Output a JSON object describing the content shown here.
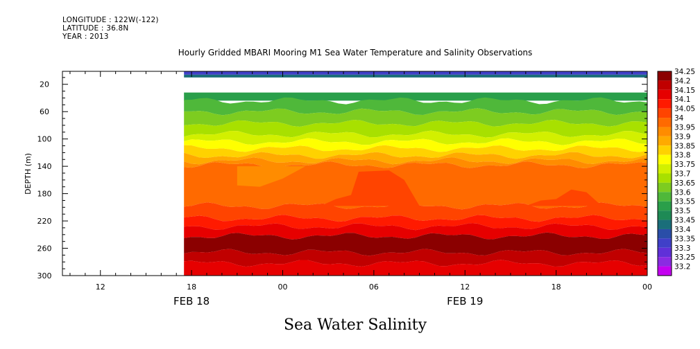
{
  "header": {
    "longitude_line": "LONGITUDE : 122W(-122)",
    "latitude_line": "LATITUDE : 36.8N",
    "year_line": "YEAR : 2013"
  },
  "chart_data": {
    "type": "heatmap",
    "title": "Hourly Gridded MBARI Mooring M1 Sea Water Temperature and Salinity Observations",
    "variable_title": "Sea Water Salinity",
    "ylabel": "DEPTH (m)",
    "xlabel": "",
    "x_axis": {
      "unit": "hours since 2013-02-18 00:00",
      "range": [
        9.5,
        48.0
      ],
      "tick_labels": [
        {
          "x": 12,
          "label": "12"
        },
        {
          "x": 18,
          "label": "18"
        },
        {
          "x": 24,
          "label": "00"
        },
        {
          "x": 30,
          "label": "06"
        },
        {
          "x": 36,
          "label": "12"
        },
        {
          "x": 42,
          "label": "18"
        },
        {
          "x": 48,
          "label": "00"
        }
      ],
      "date_labels": [
        {
          "x": 18,
          "label": "FEB 18"
        },
        {
          "x": 36,
          "label": "FEB 19"
        }
      ]
    },
    "y_axis": {
      "range": [
        300,
        1
      ],
      "reversed": true,
      "ticks": [
        20,
        60,
        100,
        140,
        180,
        220,
        260,
        300
      ]
    },
    "data_start_hour": 17.5,
    "colorbar": {
      "levels": [
        "34.25",
        "34.2",
        "34.15",
        "34.1",
        "34.05",
        "34",
        "33.95",
        "33.9",
        "33.85",
        "33.8",
        "33.75",
        "33.7",
        "33.65",
        "33.6",
        "33.55",
        "33.5",
        "33.45",
        "33.4",
        "33.35",
        "33.3",
        "33.25",
        "33.2"
      ],
      "colors": [
        "#8B0000",
        "#C00000",
        "#E60000",
        "#FF1A00",
        "#FF4400",
        "#FF6A00",
        "#FF8C00",
        "#FFAA00",
        "#FFD200",
        "#FFFF00",
        "#D2F000",
        "#A8E000",
        "#7DCC20",
        "#4FB83A",
        "#2A9F4A",
        "#1E8A55",
        "#1A6E7A",
        "#2A4EA8",
        "#4040C8",
        "#6030D8",
        "#8A2BE2",
        "#C400F0"
      ]
    },
    "bands": [
      {
        "depth_from": 1,
        "depth_to": 6,
        "salinity": 33.35
      },
      {
        "depth_from": 6,
        "depth_to": 10,
        "salinity": 33.45
      },
      {
        "depth_from": 10,
        "depth_to": 32,
        "salinity": null
      },
      {
        "depth_from": 32,
        "depth_to": 44,
        "salinity": 33.55
      },
      {
        "depth_from": 44,
        "depth_to": 60,
        "salinity": 33.6
      },
      {
        "depth_from": 60,
        "depth_to": 77,
        "salinity": 33.65
      },
      {
        "depth_from": 77,
        "depth_to": 93,
        "salinity": 33.7
      },
      {
        "depth_from": 93,
        "depth_to": 104,
        "salinity": 33.75
      },
      {
        "depth_from": 104,
        "depth_to": 114,
        "salinity": 33.8
      },
      {
        "depth_from": 114,
        "depth_to": 124,
        "salinity": 33.85
      },
      {
        "depth_from": 124,
        "depth_to": 132,
        "salinity": 33.9
      },
      {
        "depth_from": 132,
        "depth_to": 138,
        "salinity": 33.95
      },
      {
        "depth_from": 138,
        "depth_to": 198,
        "salinity": 34.0
      },
      {
        "depth_from": 198,
        "depth_to": 216,
        "salinity": 34.05
      },
      {
        "depth_from": 216,
        "depth_to": 228,
        "salinity": 34.1
      },
      {
        "depth_from": 228,
        "depth_to": 242,
        "salinity": 34.15
      },
      {
        "depth_from": 242,
        "depth_to": 266,
        "salinity": 34.25
      },
      {
        "depth_from": 266,
        "depth_to": 282,
        "salinity": 34.2
      },
      {
        "depth_from": 282,
        "depth_to": 300,
        "salinity": 34.15
      }
    ],
    "features": [
      {
        "name": "fresher-intrusion",
        "salinity": 33.95,
        "polygon": [
          [
            21,
            140
          ],
          [
            21,
            168
          ],
          [
            22.5,
            170
          ],
          [
            24,
            158
          ],
          [
            25.5,
            140
          ]
        ]
      },
      {
        "name": "salty-plume",
        "salinity": 34.05,
        "polygon": [
          [
            26.5,
            198
          ],
          [
            27.5,
            188
          ],
          [
            28.5,
            182
          ],
          [
            29,
            148
          ],
          [
            31,
            146
          ],
          [
            32,
            160
          ],
          [
            33,
            198
          ]
        ]
      },
      {
        "name": "salty-plume-2",
        "salinity": 34.05,
        "polygon": [
          [
            40,
            198
          ],
          [
            41,
            190
          ],
          [
            42,
            188
          ],
          [
            43,
            174
          ],
          [
            44,
            178
          ],
          [
            45,
            198
          ]
        ]
      }
    ]
  }
}
